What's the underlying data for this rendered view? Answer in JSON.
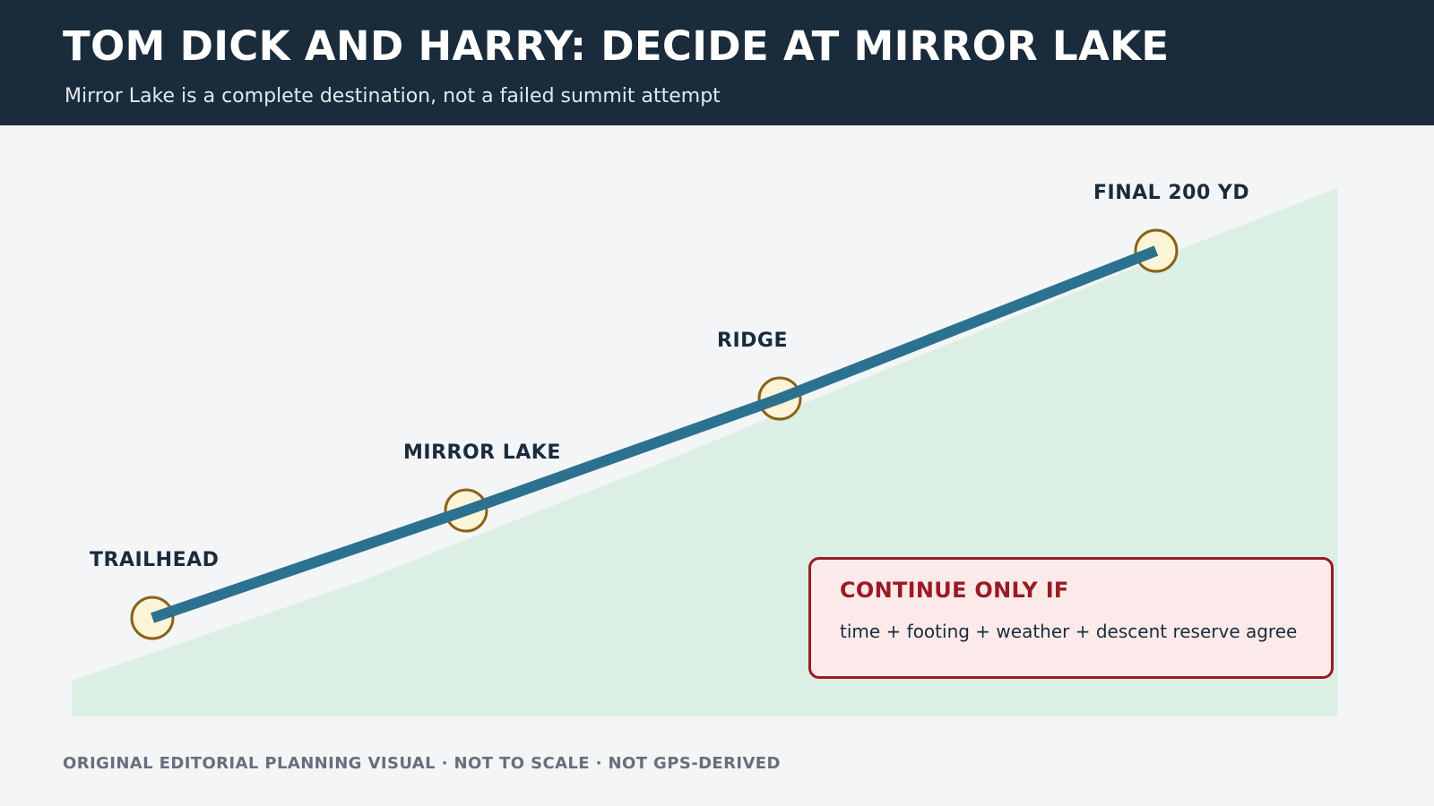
{
  "header": {
    "title": "TOM DICK AND HARRY: DECIDE AT MIRROR LAKE",
    "subtitle": "Mirror Lake is a complete destination, not a failed summit attempt"
  },
  "route": {
    "waypoints": [
      {
        "label": "TRAILHEAD"
      },
      {
        "label": "MIRROR LAKE"
      },
      {
        "label": "RIDGE"
      },
      {
        "label": "FINAL 200 YD"
      }
    ]
  },
  "callout": {
    "title": "CONTINUE ONLY IF",
    "text": "time + footing + weather + descent reserve agree"
  },
  "footer": {
    "note": "ORIGINAL EDITORIAL PLANNING VISUAL · NOT TO SCALE · NOT GPS-DERIVED"
  },
  "colors": {
    "header_bg": "#1a2b3b",
    "route_line": "#2d7190",
    "terrain_fill": "#dcefe4",
    "waypoint_fill": "#fcf4d6",
    "waypoint_stroke": "#8a6317",
    "callout_border": "#9a1b22",
    "callout_bg": "#fceaea"
  }
}
